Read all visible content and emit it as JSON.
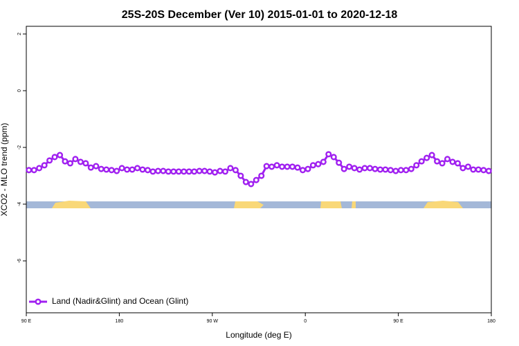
{
  "chart_data": {
    "type": "line",
    "title": "25S-20S December (Ver 10)   2015-01-01 to 2020-12-18",
    "x_label": "Longitude (deg E)",
    "y_label": "XCO2 - MLO trend (ppm)",
    "xlim": [
      90,
      540
    ],
    "xticks": [
      {
        "value": 90,
        "label": "90 E"
      },
      180,
      {
        "value": 270,
        "label": "90 W"
      },
      {
        "value": 360,
        "label": "0"
      },
      {
        "value": 450,
        "label": "90 E"
      },
      {
        "value": 540,
        "label": "180"
      }
    ],
    "ylim": [
      -7.83,
      2.27
    ],
    "yticks": [
      -6,
      -4,
      -2,
      0,
      2
    ],
    "legend": "bottomleft",
    "x": [
      92.5,
      97.5,
      102.5,
      107.5,
      112.5,
      117.5,
      122.5,
      127.5,
      132.5,
      137.5,
      142.5,
      147.5,
      152.5,
      157.5,
      162.5,
      167.5,
      172.5,
      177.5,
      182.5,
      187.5,
      192.5,
      197.5,
      202.5,
      207.5,
      212.5,
      217.5,
      222.5,
      227.5,
      232.5,
      237.5,
      242.5,
      247.5,
      252.5,
      257.5,
      262.5,
      267.5,
      272.5,
      277.5,
      282.5,
      287.5,
      292.5,
      297.5,
      302.5,
      307.5,
      312.5,
      317.5,
      322.5,
      327.5,
      332.5,
      337.5,
      342.5,
      347.5,
      352.5,
      357.5,
      362.5,
      367.5,
      372.5,
      377.5,
      382.5,
      387.5,
      392.5,
      397.5,
      402.5,
      407.5,
      412.5,
      417.5,
      422.5,
      427.5,
      432.5,
      437.5,
      442.5,
      447.5,
      452.5,
      457.5,
      462.5,
      467.5,
      472.5,
      477.5,
      482.5,
      487.5,
      492.5,
      497.5,
      502.5,
      507.5,
      512.5,
      517.5,
      522.5,
      527.5,
      532.5,
      537.5
    ],
    "series": [
      {
        "name": "Land (Nadir&Glint) and Ocean (Glint)",
        "color": "#a020f0",
        "values": [
          -2.8,
          -2.8,
          -2.73,
          -2.63,
          -2.46,
          -2.34,
          -2.27,
          -2.49,
          -2.56,
          -2.41,
          -2.51,
          -2.56,
          -2.71,
          -2.66,
          -2.76,
          -2.78,
          -2.8,
          -2.83,
          -2.73,
          -2.78,
          -2.78,
          -2.73,
          -2.78,
          -2.8,
          -2.85,
          -2.83,
          -2.83,
          -2.85,
          -2.85,
          -2.85,
          -2.85,
          -2.85,
          -2.85,
          -2.83,
          -2.83,
          -2.85,
          -2.88,
          -2.83,
          -2.85,
          -2.73,
          -2.8,
          -3.0,
          -3.22,
          -3.29,
          -3.15,
          -3.0,
          -2.66,
          -2.68,
          -2.63,
          -2.68,
          -2.68,
          -2.68,
          -2.71,
          -2.8,
          -2.76,
          -2.63,
          -2.59,
          -2.51,
          -2.24,
          -2.34,
          -2.54,
          -2.76,
          -2.68,
          -2.73,
          -2.78,
          -2.73,
          -2.73,
          -2.76,
          -2.78,
          -2.78,
          -2.8,
          -2.83,
          -2.8,
          -2.8,
          -2.76,
          -2.63,
          -2.49,
          -2.37,
          -2.27,
          -2.49,
          -2.56,
          -2.41,
          -2.51,
          -2.56,
          -2.73,
          -2.68,
          -2.78,
          -2.78,
          -2.8,
          -2.83
        ]
      }
    ]
  }
}
